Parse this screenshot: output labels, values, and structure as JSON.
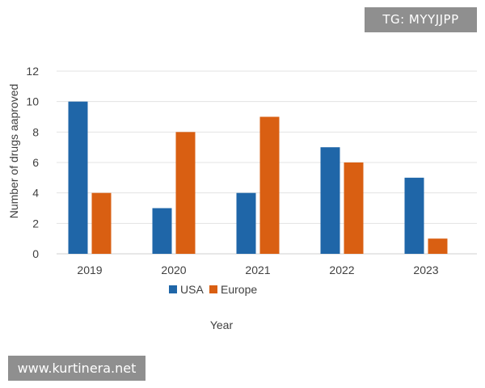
{
  "watermarks": {
    "top": "TG: MYYJJPP",
    "bottom": "www.kurtinera.net"
  },
  "chart_data": {
    "type": "bar",
    "title": "",
    "xlabel": "Year",
    "ylabel": "Number of drugs aaproved",
    "categories": [
      "2019",
      "2020",
      "2021",
      "2022",
      "2023"
    ],
    "series": [
      {
        "name": "USA",
        "color": "#1f66a8",
        "values": [
          10,
          3,
          4,
          7,
          5
        ]
      },
      {
        "name": "Europe",
        "color": "#d95f12",
        "values": [
          4,
          8,
          9,
          6,
          1
        ]
      }
    ],
    "ylim": [
      0,
      12
    ],
    "yticks": [
      "0",
      "2",
      "4",
      "6",
      "8",
      "10",
      "12"
    ],
    "grid": true,
    "legend": "bottom-center"
  }
}
